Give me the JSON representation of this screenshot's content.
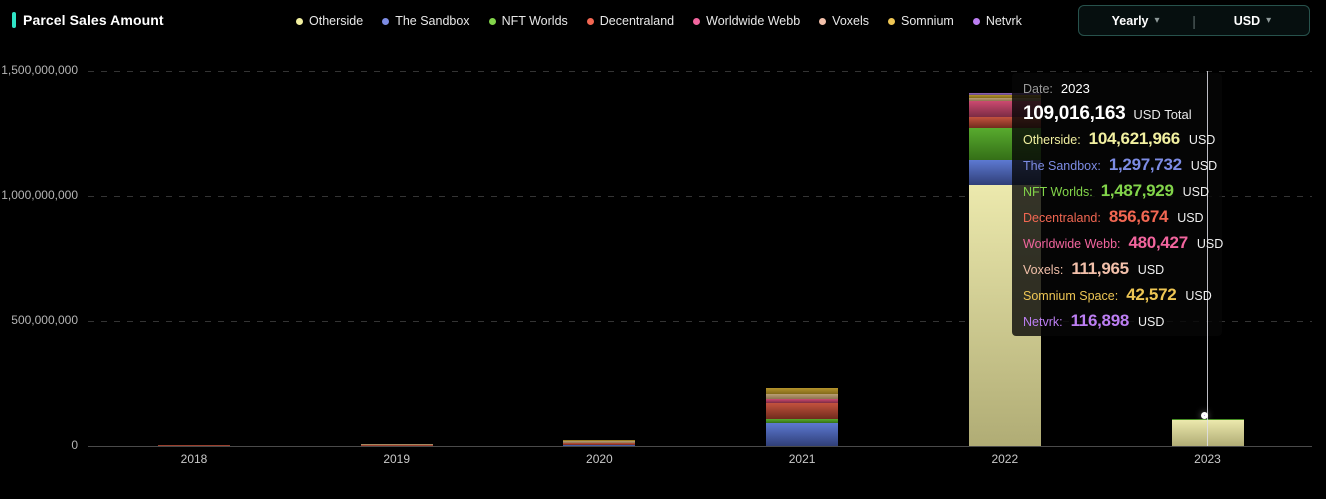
{
  "header": {
    "title": "Parcel Sales Amount",
    "accent_color": "#2fe3c5",
    "controls": {
      "period_value": "Yearly",
      "currency_value": "USD",
      "separator": "|",
      "chevron": "▾"
    }
  },
  "legend": {
    "items": [
      {
        "label": "Otherside",
        "color": "#f2f0a0"
      },
      {
        "label": "The Sandbox",
        "color": "#7d8ce4"
      },
      {
        "label": "NFT Worlds",
        "color": "#82d44a"
      },
      {
        "label": "Decentraland",
        "color": "#f26752"
      },
      {
        "label": "Worldwide Webb",
        "color": "#f2659e"
      },
      {
        "label": "Voxels",
        "color": "#f2c0aa"
      },
      {
        "label": "Somnium",
        "color": "#eec654"
      },
      {
        "label": "Netvrk",
        "color": "#bc7ef2"
      }
    ]
  },
  "chart_data": {
    "type": "bar",
    "stacked": true,
    "title": "Parcel Sales Amount",
    "categories": [
      "2018",
      "2019",
      "2020",
      "2021",
      "2022",
      "2023"
    ],
    "series": [
      {
        "name": "Otherside",
        "color": "#f2f0a0",
        "bar_top": "#ece9ad",
        "bar_bottom": "#b0ac75",
        "values": [
          0,
          0,
          0,
          0,
          1044000000,
          104621966
        ]
      },
      {
        "name": "The Sandbox",
        "color": "#7d8ce4",
        "bar_top": "#5d79d2",
        "bar_bottom": "#303f78",
        "values": [
          0,
          0,
          6000000,
          92000000,
          100000000,
          1297732
        ]
      },
      {
        "name": "NFT Worlds",
        "color": "#82d44a",
        "bar_top": "#58ab2e",
        "bar_bottom": "#346f17",
        "values": [
          0,
          0,
          0,
          16000000,
          128000000,
          1487929
        ]
      },
      {
        "name": "Decentraland",
        "color": "#f26752",
        "bar_top": "#c4523e",
        "bar_bottom": "#702b1d",
        "values": [
          4000000,
          6000000,
          5000000,
          64000000,
          44000000,
          856674
        ]
      },
      {
        "name": "Worldwide Webb",
        "color": "#f2659e",
        "bar_top": "#cc4a70",
        "bar_bottom": "#7c2b44",
        "values": [
          0,
          0,
          0,
          16000000,
          64000000,
          480427
        ]
      },
      {
        "name": "Voxels",
        "color": "#f2c0aa",
        "bar_top": "#bb9e74",
        "bar_bottom": "#8d744e",
        "values": [
          0,
          3000000,
          8000000,
          20000000,
          12000000,
          111965
        ]
      },
      {
        "name": "Somnium",
        "color": "#eec654",
        "bar_top": "#b5942c",
        "bar_bottom": "#83691a",
        "values": [
          0,
          1000000,
          6000000,
          24000000,
          12000000,
          42572
        ]
      },
      {
        "name": "Netvrk",
        "color": "#bc7ef2",
        "bar_top": "#9168bb",
        "bar_bottom": "#64467f",
        "values": [
          0,
          0,
          0,
          0,
          8000000,
          116898
        ]
      }
    ],
    "ylim": [
      0,
      1500000000
    ],
    "y_ticks": [
      {
        "value": 0,
        "label": "0"
      },
      {
        "value": 500000000,
        "label": "500,000,000"
      },
      {
        "value": 1000000000,
        "label": "1,000,000,000"
      },
      {
        "value": 1500000000,
        "label": "1,500,000,000"
      }
    ],
    "grid": "dashed horizontal",
    "legend_position": "top",
    "highlighted_category": "2023"
  },
  "tooltip": {
    "date_label": "Date:",
    "date_value": "2023",
    "total_value": "109,016,163",
    "total_suffix": "USD Total",
    "rows": [
      {
        "label": "Otherside:",
        "value": "104,621,966",
        "suffix": "USD",
        "color": "#f2f0a0"
      },
      {
        "label": "The Sandbox:",
        "value": "1,297,732",
        "suffix": "USD",
        "color": "#7d8ce4"
      },
      {
        "label": "NFT Worlds:",
        "value": "1,487,929",
        "suffix": "USD",
        "color": "#82d44a"
      },
      {
        "label": "Decentraland:",
        "value": "856,674",
        "suffix": "USD",
        "color": "#f26752"
      },
      {
        "label": "Worldwide Webb:",
        "value": "480,427",
        "suffix": "USD",
        "color": "#f2659e"
      },
      {
        "label": "Voxels:",
        "value": "111,965",
        "suffix": "USD",
        "color": "#f2c0aa"
      },
      {
        "label": "Somnium Space:",
        "value": "42,572",
        "suffix": "USD",
        "color": "#eec654"
      },
      {
        "label": "Netvrk:",
        "value": "116,898",
        "suffix": "USD",
        "color": "#bc7ef2"
      }
    ],
    "marker_color": "#c07ae8"
  }
}
